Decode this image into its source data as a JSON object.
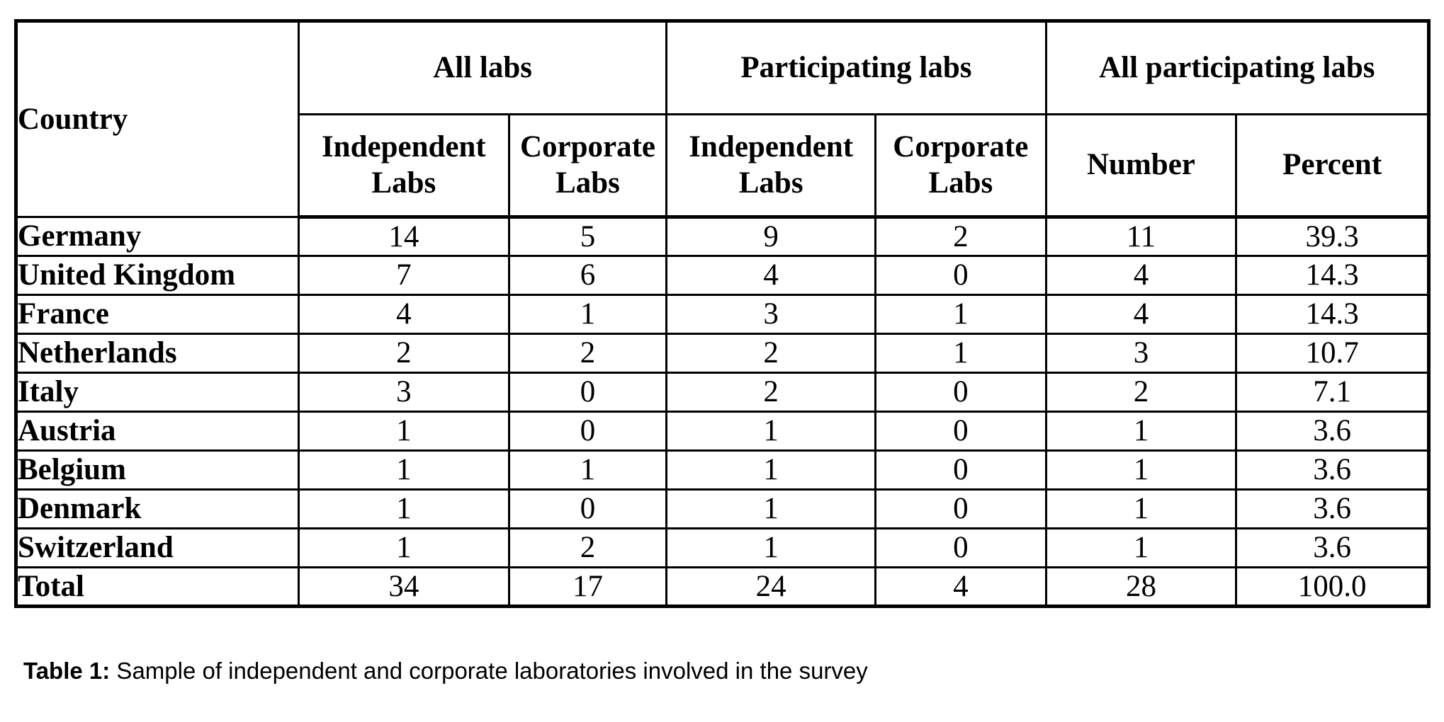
{
  "table": {
    "corner_header": "Country",
    "groups": [
      {
        "label": "All labs",
        "subheaders": [
          "Independent\nLabs",
          "Corporate\nLabs"
        ]
      },
      {
        "label": "Participating labs",
        "subheaders": [
          "Independent\nLabs",
          "Corporate\nLabs"
        ]
      },
      {
        "label": "All participating labs",
        "subheaders": [
          "Number",
          "Percent"
        ]
      }
    ],
    "rows": [
      {
        "country": "Germany",
        "values": [
          "14",
          "5",
          "9",
          "2",
          "11",
          "39.3"
        ]
      },
      {
        "country": "United Kingdom",
        "values": [
          "7",
          "6",
          "4",
          "0",
          "4",
          "14.3"
        ]
      },
      {
        "country": "France",
        "values": [
          "4",
          "1",
          "3",
          "1",
          "4",
          "14.3"
        ]
      },
      {
        "country": "Netherlands",
        "values": [
          "2",
          "2",
          "2",
          "1",
          "3",
          "10.7"
        ]
      },
      {
        "country": "Italy",
        "values": [
          "3",
          "0",
          "2",
          "0",
          "2",
          "7.1"
        ]
      },
      {
        "country": "Austria",
        "values": [
          "1",
          "0",
          "1",
          "0",
          "1",
          "3.6"
        ]
      },
      {
        "country": "Belgium",
        "values": [
          "1",
          "1",
          "1",
          "0",
          "1",
          "3.6"
        ]
      },
      {
        "country": "Denmark",
        "values": [
          "1",
          "0",
          "1",
          "0",
          "1",
          "3.6"
        ]
      },
      {
        "country": "Switzerland",
        "values": [
          "1",
          "2",
          "1",
          "0",
          "1",
          "3.6"
        ]
      },
      {
        "country": "Total",
        "values": [
          "34",
          "17",
          "24",
          "4",
          "28",
          "100.0"
        ]
      }
    ]
  },
  "caption": {
    "label": "Table 1:",
    "text": " Sample of independent and corporate laboratories involved in the survey"
  },
  "colors": {
    "border": "#000000",
    "text": "#000000",
    "background": "#ffffff"
  }
}
